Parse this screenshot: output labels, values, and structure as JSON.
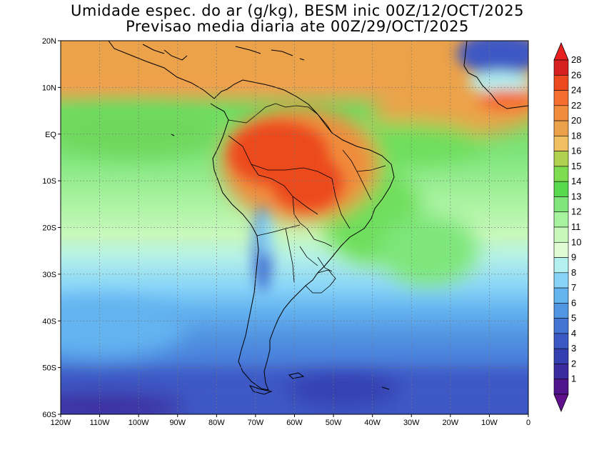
{
  "title_line1": "Umidade espec. do ar (g/kg), BESM inic 00Z/12/OCT/2025",
  "title_line2": "Previsao media diaria ate 00Z/29/OCT/2025",
  "lat_labels": [
    "20N",
    "10N",
    "EQ",
    "10S",
    "20S",
    "30S",
    "40S",
    "50S",
    "60S"
  ],
  "lon_labels": [
    "120W",
    "110W",
    "100W",
    "90W",
    "80W",
    "70W",
    "60W",
    "50W",
    "40W",
    "30W",
    "20W",
    "10W",
    "0"
  ],
  "colorbar": {
    "labels": [
      "28",
      "26",
      "24",
      "22",
      "20",
      "18",
      "16",
      "15",
      "14",
      "13",
      "12",
      "11",
      "10",
      "9",
      "8",
      "7",
      "6",
      "5",
      "4",
      "3",
      "2",
      "1"
    ],
    "colors": [
      "#d62020",
      "#ec4a1e",
      "#f56e30",
      "#f08c3c",
      "#eba14a",
      "#f0c060",
      "#b0d050",
      "#7edc50",
      "#58d84c",
      "#7ee67a",
      "#a6f29e",
      "#c8f8bc",
      "#e0fcd4",
      "#b4f0f0",
      "#88d4f8",
      "#64b4f0",
      "#5096e2",
      "#4474d4",
      "#3c58c4",
      "#3440b0",
      "#3c2aa0",
      "#50148c"
    ],
    "top_color": "#e82020",
    "bottom_color": "#60108c"
  }
}
